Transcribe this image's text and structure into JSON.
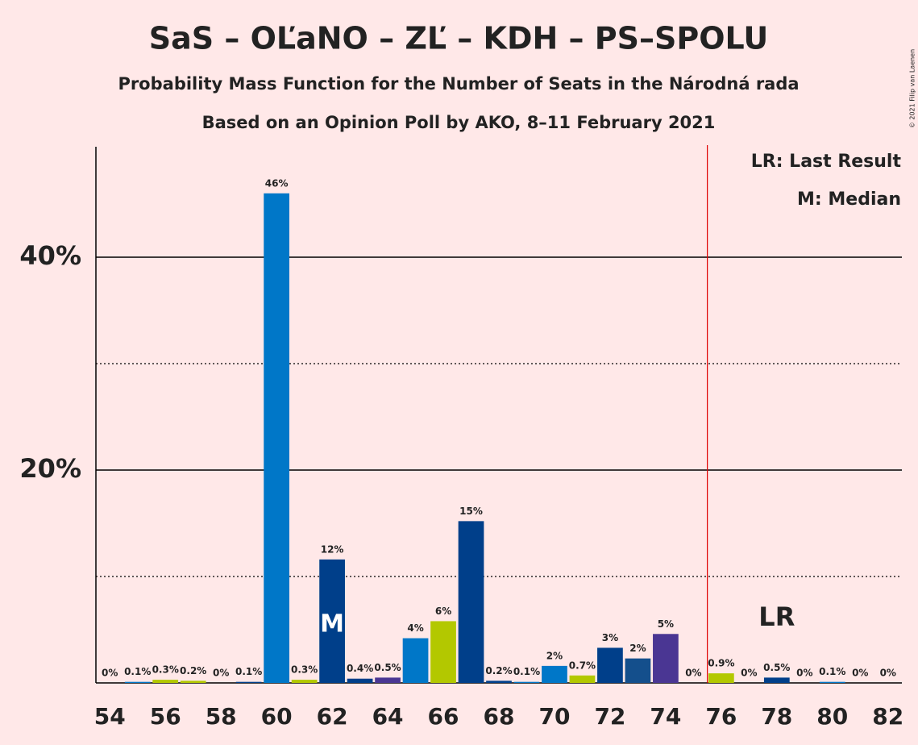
{
  "chart_data": {
    "type": "bar",
    "title": "SaS – OĽaNO – ZĽ – KDH – PS–SPOLU",
    "subtitles": [
      "Probability Mass Function for the Number of Seats in the Národná rada",
      "Based on an Opinion Poll by AKO, 8–11 February 2021"
    ],
    "x": [
      54,
      55,
      56,
      57,
      58,
      59,
      60,
      61,
      62,
      63,
      64,
      65,
      66,
      67,
      68,
      69,
      70,
      71,
      72,
      73,
      74,
      75,
      76,
      77,
      78,
      79,
      80,
      81,
      82
    ],
    "values": [
      0,
      0.1,
      0.3,
      0.2,
      0,
      0.1,
      46,
      0.3,
      11.6,
      0.4,
      0.5,
      4.2,
      5.8,
      15.2,
      0.2,
      0.1,
      1.6,
      0.7,
      3.3,
      2.3,
      4.6,
      0,
      0.9,
      0,
      0.5,
      0,
      0.1,
      0,
      0
    ],
    "value_labels": [
      "0%",
      "0.1%",
      "0.3%",
      "0.2%",
      "0%",
      "0.1%",
      "46%",
      "0.3%",
      "12%",
      "0.4%",
      "0.5%",
      "4%",
      "6%",
      "15%",
      "0.2%",
      "0.1%",
      "2%",
      "0.7%",
      "3%",
      "2%",
      "5%",
      "0%",
      "0.9%",
      "0%",
      "0.5%",
      "0%",
      "0.1%",
      "0%",
      "0%"
    ],
    "colors": [
      "#0077c8",
      "#0077c8",
      "#b3c800",
      "#b3c800",
      "#0077c8",
      "#003f8a",
      "#0077c8",
      "#b3c800",
      "#003f8a",
      "#003f8a",
      "#4a3693",
      "#0077c8",
      "#b3c800",
      "#003f8a",
      "#003f8a",
      "#0077c8",
      "#0077c8",
      "#b3c800",
      "#003f8a",
      "#144f8c",
      "#4a3693",
      "#0077c8",
      "#b3c800",
      "#003f8a",
      "#003f8a",
      "#0077c8",
      "#0077c8",
      "#b3c800",
      "#003f8a"
    ],
    "xlim": [
      53.5,
      82.5
    ],
    "xticks": [
      54,
      56,
      58,
      60,
      62,
      64,
      66,
      68,
      70,
      72,
      74,
      76,
      78,
      80,
      82
    ],
    "ylim": [
      0,
      50
    ],
    "yticks": [
      {
        "value": 20,
        "label": "20%"
      },
      {
        "value": 40,
        "label": "40%"
      }
    ],
    "minor_yticks": [
      10,
      30
    ],
    "majority_line_x": 75.5,
    "median": {
      "x": 62,
      "label": "M"
    },
    "last_result": {
      "x": 78,
      "label": "LR"
    },
    "legend": [
      "LR: Last Result",
      "M: Median"
    ],
    "copyright": "© 2021 Filip van Laenen"
  }
}
